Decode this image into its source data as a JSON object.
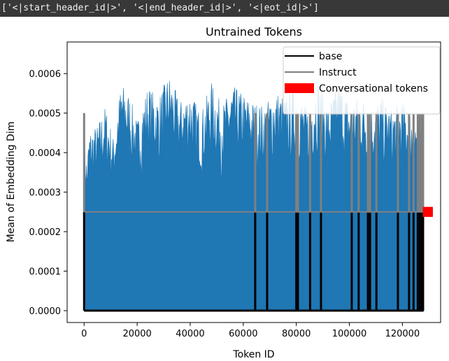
{
  "console_output": "['<|start_header_id|>', '<|end_header_id|>', '<|eot_id|>']",
  "chart_data": {
    "type": "line",
    "title": "Untrained Tokens",
    "xlabel": "Token ID",
    "ylabel": "Mean of Embedding Dim",
    "xlim": [
      -6400,
      134400
    ],
    "ylim": [
      -3e-05,
      0.00068
    ],
    "x_ticks": [
      0,
      20000,
      40000,
      60000,
      80000,
      100000,
      120000
    ],
    "x_tick_labels": [
      "0",
      "20000",
      "40000",
      "60000",
      "80000",
      "100000",
      "120000"
    ],
    "y_ticks": [
      0,
      0.0001,
      0.0002,
      0.0003,
      0.0004,
      0.0005,
      0.0006
    ],
    "y_tick_labels": [
      "0.0000",
      "0.0001",
      "0.0002",
      "0.0003",
      "0.0004",
      "0.0005",
      "0.0006"
    ],
    "grid": false,
    "legend_position": "top-right",
    "colors": {
      "instruct_fill": "#1f77b4",
      "base": "#000000",
      "instruct": "#808080",
      "conversational": "#ff0000"
    },
    "instruct_fill_profile": {
      "x": [
        0,
        1000,
        2000,
        5000,
        8000,
        11000,
        14000,
        17000,
        20000,
        24000,
        28000,
        32000,
        36000,
        40000,
        44000,
        48000,
        52000,
        56000,
        60000,
        64000,
        68000,
        72000,
        76000,
        80000,
        84000,
        88000,
        92000,
        96000,
        100000,
        104000,
        108000,
        112000,
        116000,
        120000,
        124000,
        127000,
        128000
      ],
      "y": [
        0.00045,
        0.00038,
        0.00046,
        0.00047,
        0.00052,
        0.00044,
        0.00058,
        0.00055,
        0.00048,
        0.00057,
        0.00054,
        0.0006,
        0.00053,
        0.00056,
        0.0005,
        0.00058,
        0.00052,
        0.00057,
        0.00055,
        0.00053,
        0.00052,
        0.00056,
        0.00054,
        0.00057,
        0.00051,
        0.00059,
        0.00052,
        0.00058,
        0.00053,
        0.00055,
        0.00052,
        0.00054,
        0.00051,
        0.00053,
        0.0005,
        0.00048,
        0.00046
      ]
    },
    "series": [
      {
        "name": "base",
        "baseline": 0,
        "spikes": [
          {
            "x": 0,
            "y": 0.00025
          },
          {
            "x": 64500,
            "y": 0.00025
          },
          {
            "x": 69000,
            "y": 0.00025
          },
          {
            "x": 80000,
            "y": 0.00025
          },
          {
            "x": 80600,
            "y": 0.00025
          },
          {
            "x": 85200,
            "y": 0.00025
          },
          {
            "x": 89300,
            "y": 0.00025
          },
          {
            "x": 100900,
            "y": 0.00025
          },
          {
            "x": 103500,
            "y": 0.00025
          },
          {
            "x": 107000,
            "y": 0.00025
          },
          {
            "x": 107800,
            "y": 0.00025
          },
          {
            "x": 110200,
            "y": 0.00025
          },
          {
            "x": 118300,
            "y": 0.00025
          },
          {
            "x": 122500,
            "y": 0.00025
          },
          {
            "x": 124200,
            "y": 0.00025
          },
          {
            "x": 125800,
            "y": 0.00025
          },
          {
            "x": 126600,
            "y": 0.00025
          },
          {
            "x": 127400,
            "y": 0.00025
          },
          {
            "x": 127800,
            "y": 0.00025
          }
        ],
        "end_x": 128000
      },
      {
        "name": "Instruct",
        "baseline": 0.00025,
        "spikes": [
          {
            "x": 0,
            "y": 0.0005
          },
          {
            "x": 64500,
            "y": 0.0005
          },
          {
            "x": 69000,
            "y": 0.0005
          },
          {
            "x": 80000,
            "y": 0.0005
          },
          {
            "x": 80600,
            "y": 0.0005
          },
          {
            "x": 85200,
            "y": 0.0005
          },
          {
            "x": 89300,
            "y": 0.0005
          },
          {
            "x": 100900,
            "y": 0.0005
          },
          {
            "x": 103500,
            "y": 0.0005
          },
          {
            "x": 107000,
            "y": 0.0005
          },
          {
            "x": 107800,
            "y": 0.0005
          },
          {
            "x": 110200,
            "y": 0.0005
          },
          {
            "x": 118300,
            "y": 0.0005
          },
          {
            "x": 122500,
            "y": 0.0005
          },
          {
            "x": 124200,
            "y": 0.0005
          },
          {
            "x": 125800,
            "y": 0.0005
          },
          {
            "x": 126600,
            "y": 0.0005
          },
          {
            "x": 127400,
            "y": 0.0005
          },
          {
            "x": 127800,
            "y": 0.0005
          }
        ],
        "end_x": 128000
      },
      {
        "name": "Conversational tokens",
        "points": [
          {
            "x": 128006,
            "y": 0.00025
          },
          {
            "x": 128007,
            "y": 0.00025
          },
          {
            "x": 128009,
            "y": 0.00025
          }
        ]
      }
    ]
  }
}
